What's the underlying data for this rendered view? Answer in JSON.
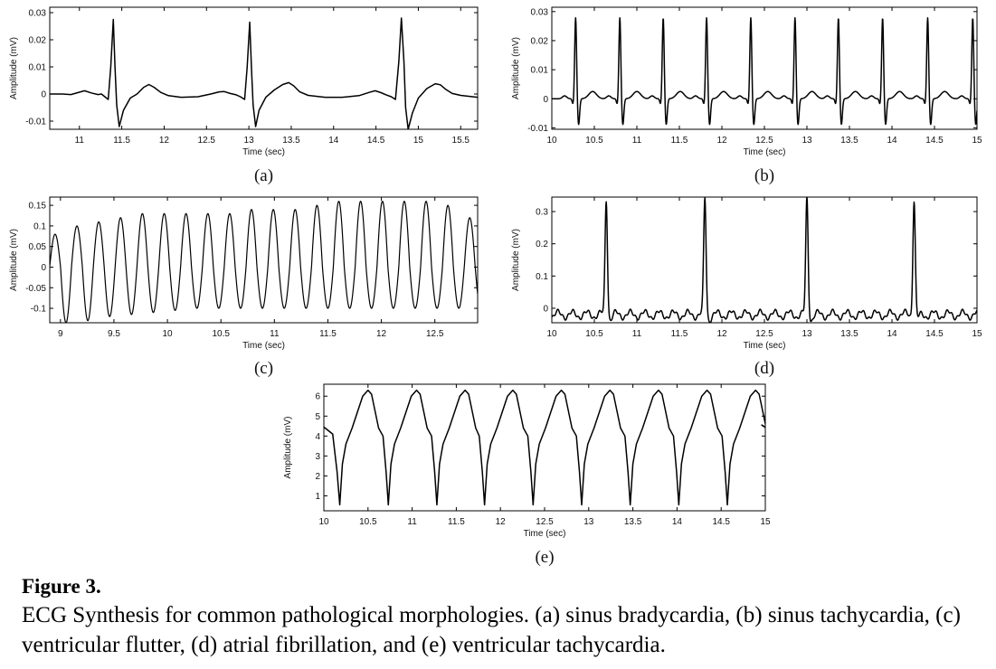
{
  "caption": {
    "title": "Figure 3.",
    "text": "ECG Synthesis for common pathological morphologies. (a) sinus bradycardia, (b) sinus tachycardia, (c) ventricular flutter, (d) atrial fibrillation, and (e) ventricular tachycardia."
  },
  "chart_data": [
    {
      "id": "a",
      "type": "line",
      "panel_label": "(a)",
      "xlabel": "Time (sec)",
      "ylabel": "Amplitude (mV)",
      "xlim": [
        10.65,
        15.7
      ],
      "ylim": [
        -0.013,
        0.032
      ],
      "xticks": [
        11,
        11.5,
        12,
        12.5,
        13,
        13.5,
        14,
        14.5,
        15,
        15.5
      ],
      "xtick_labels": [
        "11",
        "11.5",
        "12",
        "12.5",
        "13",
        "13.5",
        "14",
        "14.5",
        "15",
        "15.5"
      ],
      "yticks": [
        -0.01,
        0,
        0.01,
        0.02,
        0.03
      ],
      "ytick_labels": [
        "-0.01",
        "0",
        "0.01",
        "0.02",
        "0.03"
      ],
      "series": [
        {
          "x": [
            10.65,
            10.8,
            10.9,
            10.98,
            11.06,
            11.14,
            11.22,
            11.26,
            11.3,
            11.34,
            11.37,
            11.4,
            11.42,
            11.44,
            11.47,
            11.52,
            11.6,
            11.68,
            11.76,
            11.82,
            11.88,
            11.96,
            12.05,
            12.2,
            12.4,
            12.55,
            12.65,
            12.71,
            12.78,
            12.85,
            12.9,
            12.95,
            12.98,
            13.01,
            13.03,
            13.05,
            13.08,
            13.12,
            13.2,
            13.3,
            13.4,
            13.47,
            13.53,
            13.6,
            13.7,
            13.9,
            14.1,
            14.3,
            14.42,
            14.49,
            14.56,
            14.62,
            14.68,
            14.73,
            14.77,
            14.8,
            14.83,
            14.85,
            14.88,
            14.93,
            15.0,
            15.1,
            15.2,
            15.26,
            15.32,
            15.4,
            15.5,
            15.7
          ],
          "y": [
            0,
            0,
            -0.0002,
            0.0005,
            0.0012,
            0.0004,
            -0.0002,
            0,
            -0.001,
            -0.002,
            0.01,
            0.0275,
            0.01,
            -0.004,
            -0.012,
            -0.006,
            -0.0015,
            0,
            0.0025,
            0.0035,
            0.0025,
            0.0006,
            -0.0006,
            -0.0012,
            -0.001,
            0,
            0.0008,
            0.0009,
            0.0002,
            -0.0003,
            -0.001,
            -0.002,
            0.01,
            0.0265,
            0.01,
            -0.004,
            -0.012,
            -0.006,
            -0.0012,
            0.0015,
            0.0035,
            0.0042,
            0.003,
            0.0008,
            -0.0005,
            -0.0012,
            -0.0012,
            -0.0006,
            0.0006,
            0.0012,
            0.0005,
            -0.0003,
            -0.001,
            -0.002,
            0.012,
            0.028,
            0.012,
            -0.005,
            -0.013,
            -0.007,
            -0.0015,
            0.002,
            0.0038,
            0.0034,
            0.0018,
            0.0002,
            -0.0005,
            -0.0012
          ]
        }
      ]
    },
    {
      "id": "b",
      "type": "line",
      "panel_label": "(b)",
      "xlabel": "Time (sec)",
      "ylabel": "Amplitude (mV)",
      "xlim": [
        10,
        15
      ],
      "ylim": [
        -0.0105,
        0.0315
      ],
      "xticks": [
        10,
        10.5,
        11,
        11.5,
        12,
        12.5,
        13,
        13.5,
        14,
        14.5,
        15
      ],
      "xtick_labels": [
        "10",
        "10.5",
        "11",
        "11.5",
        "12",
        "12.5",
        "13",
        "13.5",
        "14",
        "14.5",
        "15"
      ],
      "yticks": [
        -0.01,
        0,
        0.01,
        0.02,
        0.03
      ],
      "ytick_labels": [
        "-0.01",
        "0",
        "0.01",
        "0.02",
        "0.03"
      ],
      "beats": {
        "r_peak_times": [
          10.28,
          10.8,
          11.31,
          11.82,
          12.34,
          12.86,
          13.37,
          13.89,
          14.42,
          14.95
        ],
        "r_amplitude": 0.028,
        "s_amplitude": -0.009,
        "t_amplitude": 0.0025
      }
    },
    {
      "id": "c",
      "type": "line",
      "panel_label": "(c)",
      "xlabel": "Time (sec)",
      "ylabel": "Amplitude (mV)",
      "xlim": [
        8.9,
        12.9
      ],
      "ylim": [
        -0.135,
        0.17
      ],
      "xticks": [
        9,
        9.5,
        10,
        10.5,
        11,
        11.5,
        12,
        12.5
      ],
      "xtick_labels": [
        "9",
        "9.5",
        "10",
        "10.5",
        "11",
        "11.5",
        "12",
        "12.5"
      ],
      "yticks": [
        -0.1,
        -0.05,
        0,
        0.05,
        0.1,
        0.15
      ],
      "ytick_labels": [
        "-0.1",
        "-0.05",
        "0",
        "0.05",
        "0.1",
        "0.15"
      ],
      "oscillation": {
        "first_peak_time": 8.95,
        "period": 0.204,
        "peak_amplitudes": [
          0.08,
          0.1,
          0.11,
          0.12,
          0.13,
          0.13,
          0.13,
          0.13,
          0.13,
          0.14,
          0.14,
          0.14,
          0.15,
          0.16,
          0.16,
          0.16,
          0.16,
          0.16,
          0.15,
          0.12
        ],
        "trough_amplitudes": [
          -0.135,
          -0.13,
          -0.12,
          -0.115,
          -0.11,
          -0.105,
          -0.1,
          -0.1,
          -0.1,
          -0.1,
          -0.1,
          -0.1,
          -0.1,
          -0.1,
          -0.1,
          -0.1,
          -0.1,
          -0.1,
          -0.1,
          -0.1
        ]
      }
    },
    {
      "id": "d",
      "type": "line",
      "panel_label": "(d)",
      "xlabel": "Time (sec)",
      "ylabel": "Amplitude (mV)",
      "xlim": [
        10,
        15
      ],
      "ylim": [
        -0.045,
        0.345
      ],
      "xticks": [
        10,
        10.5,
        11,
        11.5,
        12,
        12.5,
        13,
        13.5,
        14,
        14.5,
        15
      ],
      "xtick_labels": [
        "10",
        "10.5",
        "11",
        "11.5",
        "12",
        "12.5",
        "13",
        "13.5",
        "14",
        "14.5",
        "15"
      ],
      "yticks": [
        0,
        0.1,
        0.2,
        0.3
      ],
      "ytick_labels": [
        "0",
        "0.1",
        "0.2",
        "0.3"
      ],
      "beats": {
        "r_peak_times": [
          10.64,
          11.8,
          13.0,
          14.26
        ],
        "r_amplitude": 0.34,
        "baseline": -0.02,
        "fibrillation_amplitude": 0.012,
        "fibrillation_period": 0.17
      }
    },
    {
      "id": "e",
      "type": "line",
      "panel_label": "(e)",
      "xlabel": "Time (sec)",
      "ylabel": "Amplitude (mV)",
      "xlim": [
        10,
        15
      ],
      "ylim": [
        0.25,
        6.6
      ],
      "xticks": [
        10,
        10.5,
        11,
        11.5,
        12,
        12.5,
        13,
        13.5,
        14,
        14.5,
        15
      ],
      "xtick_labels": [
        "10",
        "10.5",
        "11",
        "11.5",
        "12",
        "12.5",
        "13",
        "13.5",
        "14",
        "14.5",
        "15"
      ],
      "yticks": [
        1,
        2,
        3,
        4,
        5,
        6
      ],
      "ytick_labels": [
        "1",
        "2",
        "3",
        "4",
        "5",
        "6"
      ],
      "beats": {
        "trough_times": [
          10.18,
          10.73,
          11.28,
          11.82,
          12.37,
          12.92,
          13.47,
          14.02,
          14.57
        ],
        "trough_value": 0.55,
        "peak_value": 6.3,
        "shoulder_value": 4.4,
        "start_value": 4.45
      }
    }
  ]
}
